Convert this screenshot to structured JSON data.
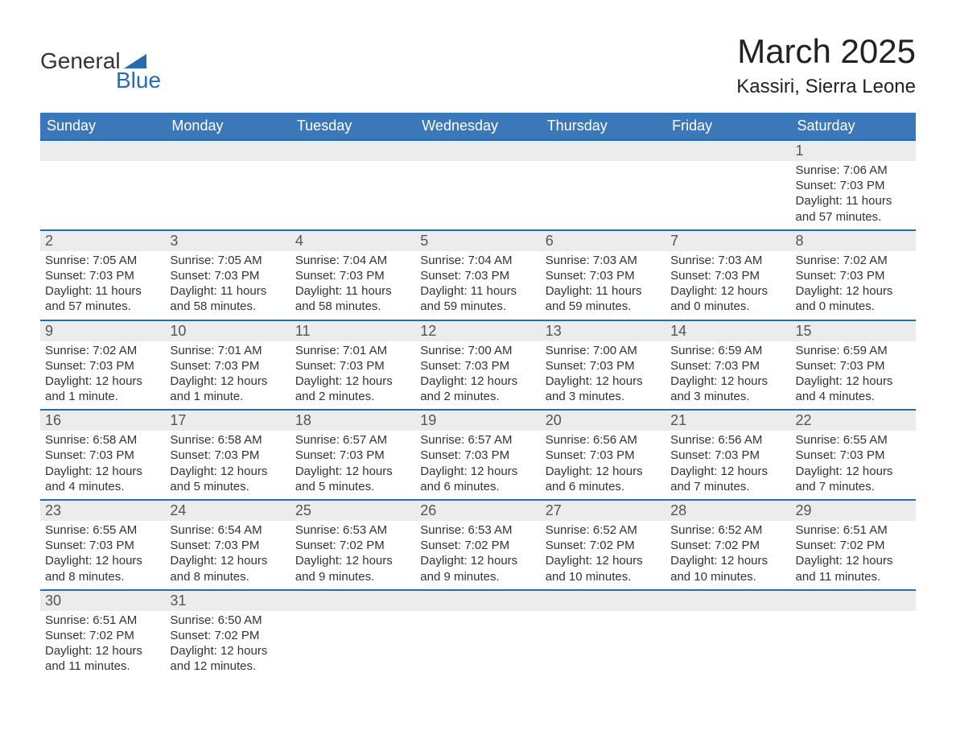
{
  "logo": {
    "text1": "General",
    "text2": "Blue",
    "triangle_color": "#2a6bb0"
  },
  "title": "March 2025",
  "location": "Kassiri, Sierra Leone",
  "colors": {
    "header_bg": "#3a78b9",
    "header_text": "#ffffff",
    "row_border": "#2a6bb0",
    "daynum_bg": "#ececec",
    "body_text": "#333333"
  },
  "day_headers": [
    "Sunday",
    "Monday",
    "Tuesday",
    "Wednesday",
    "Thursday",
    "Friday",
    "Saturday"
  ],
  "weeks": [
    [
      null,
      null,
      null,
      null,
      null,
      null,
      {
        "n": "1",
        "sunrise": "7:06 AM",
        "sunset": "7:03 PM",
        "daylight": "11 hours and 57 minutes."
      }
    ],
    [
      {
        "n": "2",
        "sunrise": "7:05 AM",
        "sunset": "7:03 PM",
        "daylight": "11 hours and 57 minutes."
      },
      {
        "n": "3",
        "sunrise": "7:05 AM",
        "sunset": "7:03 PM",
        "daylight": "11 hours and 58 minutes."
      },
      {
        "n": "4",
        "sunrise": "7:04 AM",
        "sunset": "7:03 PM",
        "daylight": "11 hours and 58 minutes."
      },
      {
        "n": "5",
        "sunrise": "7:04 AM",
        "sunset": "7:03 PM",
        "daylight": "11 hours and 59 minutes."
      },
      {
        "n": "6",
        "sunrise": "7:03 AM",
        "sunset": "7:03 PM",
        "daylight": "11 hours and 59 minutes."
      },
      {
        "n": "7",
        "sunrise": "7:03 AM",
        "sunset": "7:03 PM",
        "daylight": "12 hours and 0 minutes."
      },
      {
        "n": "8",
        "sunrise": "7:02 AM",
        "sunset": "7:03 PM",
        "daylight": "12 hours and 0 minutes."
      }
    ],
    [
      {
        "n": "9",
        "sunrise": "7:02 AM",
        "sunset": "7:03 PM",
        "daylight": "12 hours and 1 minute."
      },
      {
        "n": "10",
        "sunrise": "7:01 AM",
        "sunset": "7:03 PM",
        "daylight": "12 hours and 1 minute."
      },
      {
        "n": "11",
        "sunrise": "7:01 AM",
        "sunset": "7:03 PM",
        "daylight": "12 hours and 2 minutes."
      },
      {
        "n": "12",
        "sunrise": "7:00 AM",
        "sunset": "7:03 PM",
        "daylight": "12 hours and 2 minutes."
      },
      {
        "n": "13",
        "sunrise": "7:00 AM",
        "sunset": "7:03 PM",
        "daylight": "12 hours and 3 minutes."
      },
      {
        "n": "14",
        "sunrise": "6:59 AM",
        "sunset": "7:03 PM",
        "daylight": "12 hours and 3 minutes."
      },
      {
        "n": "15",
        "sunrise": "6:59 AM",
        "sunset": "7:03 PM",
        "daylight": "12 hours and 4 minutes."
      }
    ],
    [
      {
        "n": "16",
        "sunrise": "6:58 AM",
        "sunset": "7:03 PM",
        "daylight": "12 hours and 4 minutes."
      },
      {
        "n": "17",
        "sunrise": "6:58 AM",
        "sunset": "7:03 PM",
        "daylight": "12 hours and 5 minutes."
      },
      {
        "n": "18",
        "sunrise": "6:57 AM",
        "sunset": "7:03 PM",
        "daylight": "12 hours and 5 minutes."
      },
      {
        "n": "19",
        "sunrise": "6:57 AM",
        "sunset": "7:03 PM",
        "daylight": "12 hours and 6 minutes."
      },
      {
        "n": "20",
        "sunrise": "6:56 AM",
        "sunset": "7:03 PM",
        "daylight": "12 hours and 6 minutes."
      },
      {
        "n": "21",
        "sunrise": "6:56 AM",
        "sunset": "7:03 PM",
        "daylight": "12 hours and 7 minutes."
      },
      {
        "n": "22",
        "sunrise": "6:55 AM",
        "sunset": "7:03 PM",
        "daylight": "12 hours and 7 minutes."
      }
    ],
    [
      {
        "n": "23",
        "sunrise": "6:55 AM",
        "sunset": "7:03 PM",
        "daylight": "12 hours and 8 minutes."
      },
      {
        "n": "24",
        "sunrise": "6:54 AM",
        "sunset": "7:03 PM",
        "daylight": "12 hours and 8 minutes."
      },
      {
        "n": "25",
        "sunrise": "6:53 AM",
        "sunset": "7:02 PM",
        "daylight": "12 hours and 9 minutes."
      },
      {
        "n": "26",
        "sunrise": "6:53 AM",
        "sunset": "7:02 PM",
        "daylight": "12 hours and 9 minutes."
      },
      {
        "n": "27",
        "sunrise": "6:52 AM",
        "sunset": "7:02 PM",
        "daylight": "12 hours and 10 minutes."
      },
      {
        "n": "28",
        "sunrise": "6:52 AM",
        "sunset": "7:02 PM",
        "daylight": "12 hours and 10 minutes."
      },
      {
        "n": "29",
        "sunrise": "6:51 AM",
        "sunset": "7:02 PM",
        "daylight": "12 hours and 11 minutes."
      }
    ],
    [
      {
        "n": "30",
        "sunrise": "6:51 AM",
        "sunset": "7:02 PM",
        "daylight": "12 hours and 11 minutes."
      },
      {
        "n": "31",
        "sunrise": "6:50 AM",
        "sunset": "7:02 PM",
        "daylight": "12 hours and 12 minutes."
      },
      null,
      null,
      null,
      null,
      null
    ]
  ],
  "labels": {
    "sunrise": "Sunrise: ",
    "sunset": "Sunset: ",
    "daylight": "Daylight: "
  }
}
